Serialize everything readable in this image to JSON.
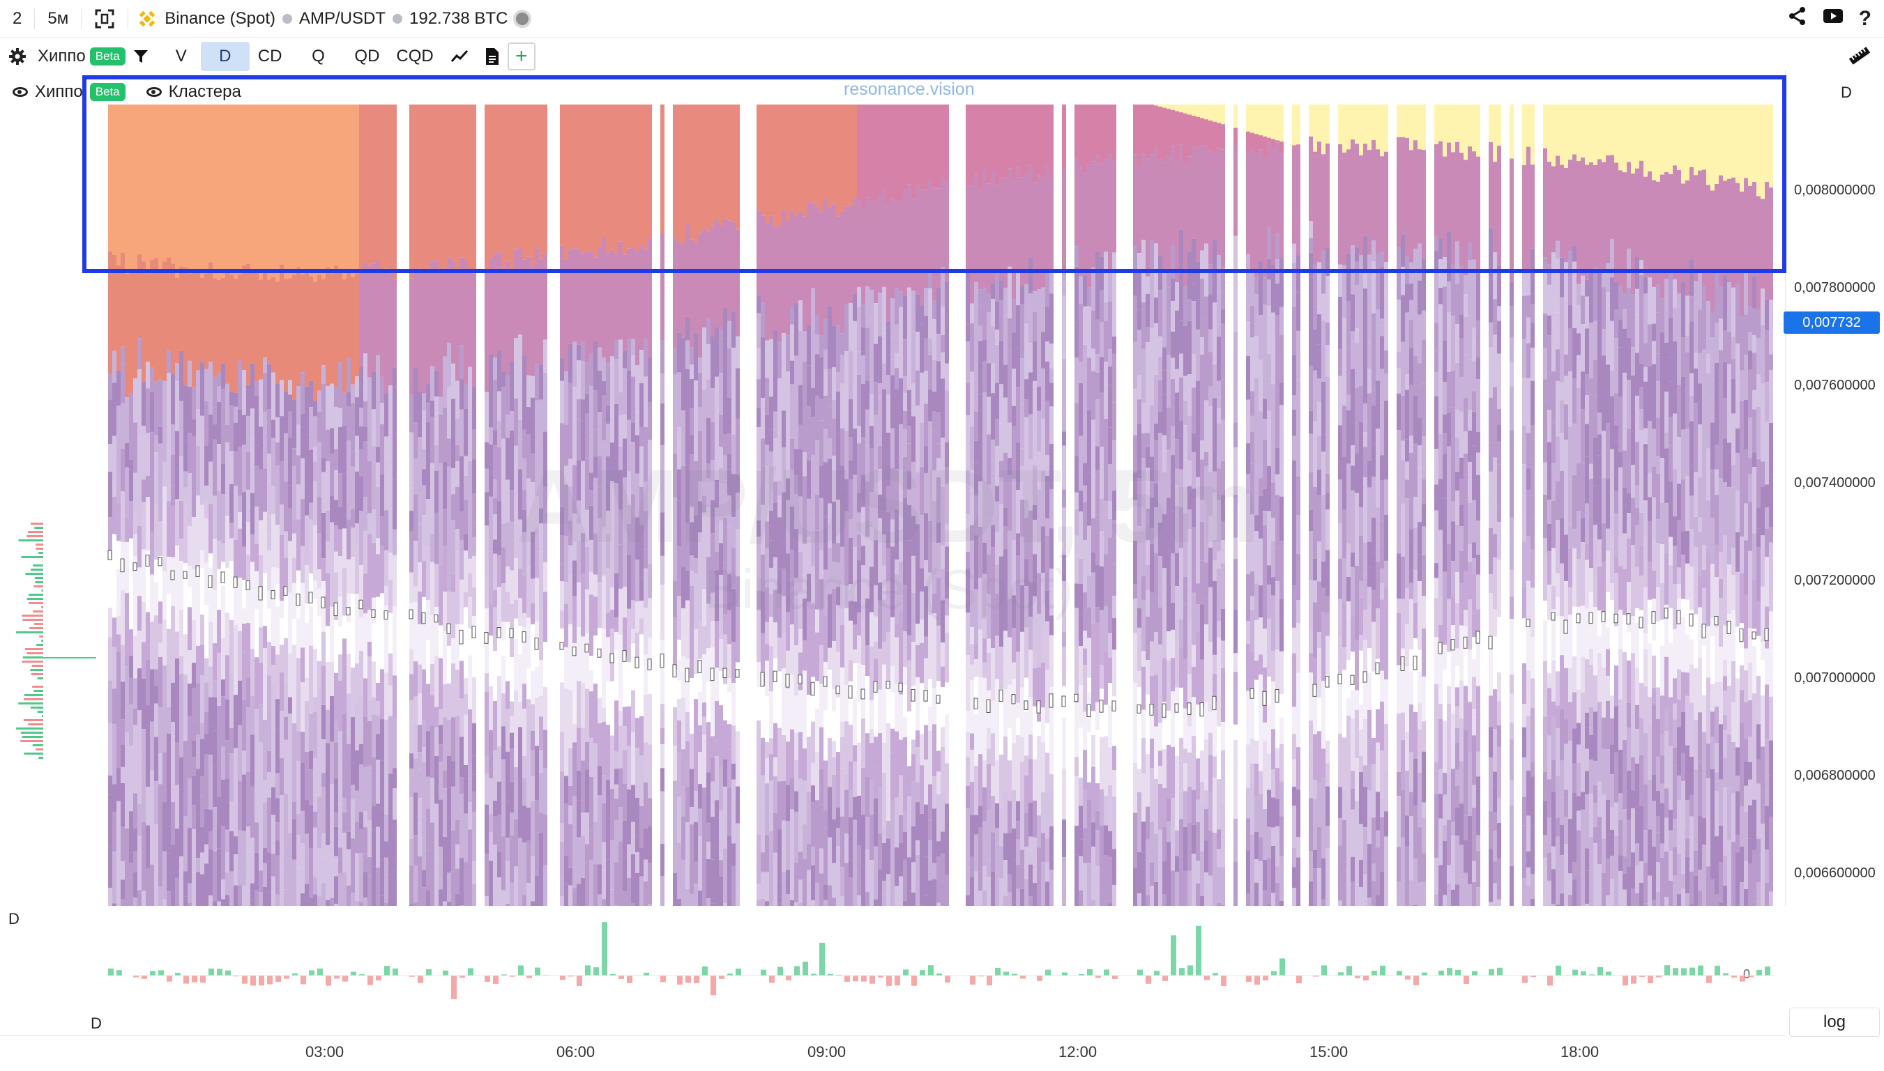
{
  "topbar": {
    "chart_count": "2",
    "timeframe": "5м",
    "exchange": "Binance (Spot)",
    "pair": "AMP/USDT",
    "volume": "192.738 BTC"
  },
  "toolbar": {
    "indicator_name": "Хиппо",
    "beta": "Beta",
    "buttons": [
      "V",
      "D",
      "CD",
      "Q",
      "QD",
      "CQD"
    ],
    "active_button": "D"
  },
  "legend": {
    "item1": "Хиппо",
    "item2": "Кластера",
    "beta": "Beta"
  },
  "watermark": {
    "site": "resonance.vision",
    "pair_tf": "AMP/USDT, 5m",
    "exchange": "Binance (Spot)"
  },
  "yaxis": {
    "ticks": [
      "0,008000000",
      "0,007800000",
      "0,007600000",
      "0,007400000",
      "0,007200000",
      "0,007000000",
      "0,006800000",
      "0,006600000"
    ],
    "current_price": "0,007732",
    "panel_label": "D"
  },
  "lower_panel": {
    "label_top": "D",
    "label_bottom": "D",
    "zero": "0"
  },
  "xaxis": {
    "ticks": [
      "03:00",
      "06:00",
      "09:00",
      "12:00",
      "15:00",
      "18:00"
    ]
  },
  "log_button": "log",
  "colors": {
    "accent": "#1a73e8",
    "highlight": "#1f3be8",
    "beta": "#23c16b",
    "up": "#4fc98a",
    "down": "#f28b8b"
  }
}
